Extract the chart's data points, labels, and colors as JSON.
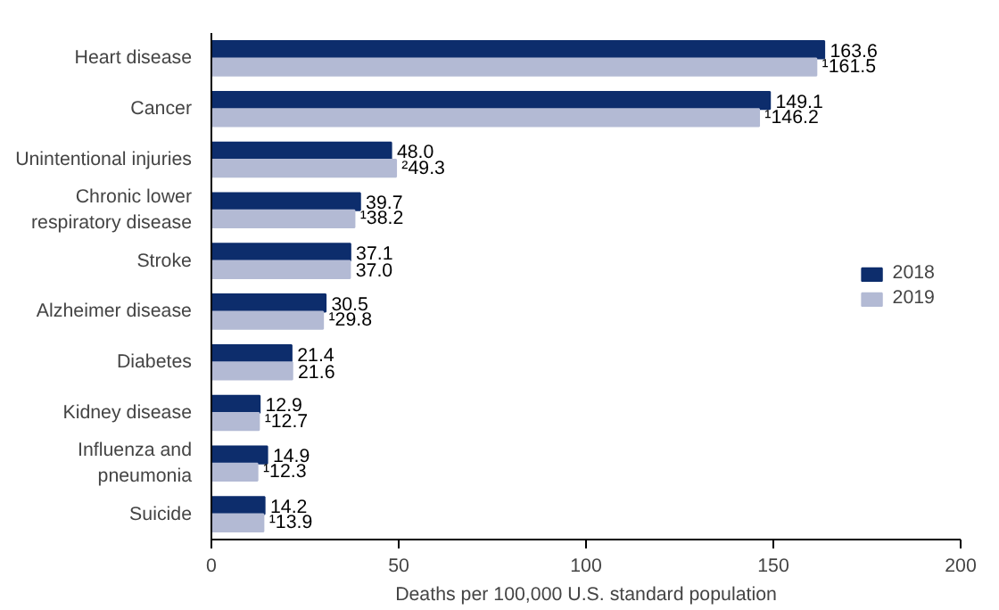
{
  "chart_data": {
    "type": "bar",
    "orientation": "horizontal",
    "categories": [
      "Heart disease",
      "Cancer",
      "Unintentional injuries",
      "Chronic lower\nrespiratory disease",
      "Stroke",
      "Alzheimer disease",
      "Diabetes",
      "Kidney disease",
      "Influenza and\npneumonia",
      "Suicide"
    ],
    "series": [
      {
        "name": "2018",
        "color": "#0d2d6c",
        "values": [
          163.6,
          149.1,
          48.0,
          39.7,
          37.1,
          30.5,
          21.4,
          12.9,
          14.9,
          14.2
        ],
        "value_labels": [
          "163.6",
          "149.1",
          "48.0",
          "39.7",
          "37.1",
          "30.5",
          "21.4",
          "12.9",
          "14.9",
          "14.2"
        ]
      },
      {
        "name": "2019",
        "color": "#b3bad4",
        "values": [
          161.5,
          146.2,
          49.3,
          38.2,
          37.0,
          29.8,
          21.6,
          12.7,
          12.3,
          13.9
        ],
        "value_labels": [
          "¹161.5",
          "¹146.2",
          "²49.3",
          "¹38.2",
          "37.0",
          "¹29.8",
          "21.6",
          "¹12.7",
          "¹12.3",
          "¹13.9"
        ]
      }
    ],
    "xlabel": "Deaths per 100,000 U.S. standard population",
    "xlim": [
      0,
      200
    ],
    "xticks": [
      0,
      50,
      100,
      150,
      200
    ],
    "grid": false,
    "legend": "right"
  }
}
